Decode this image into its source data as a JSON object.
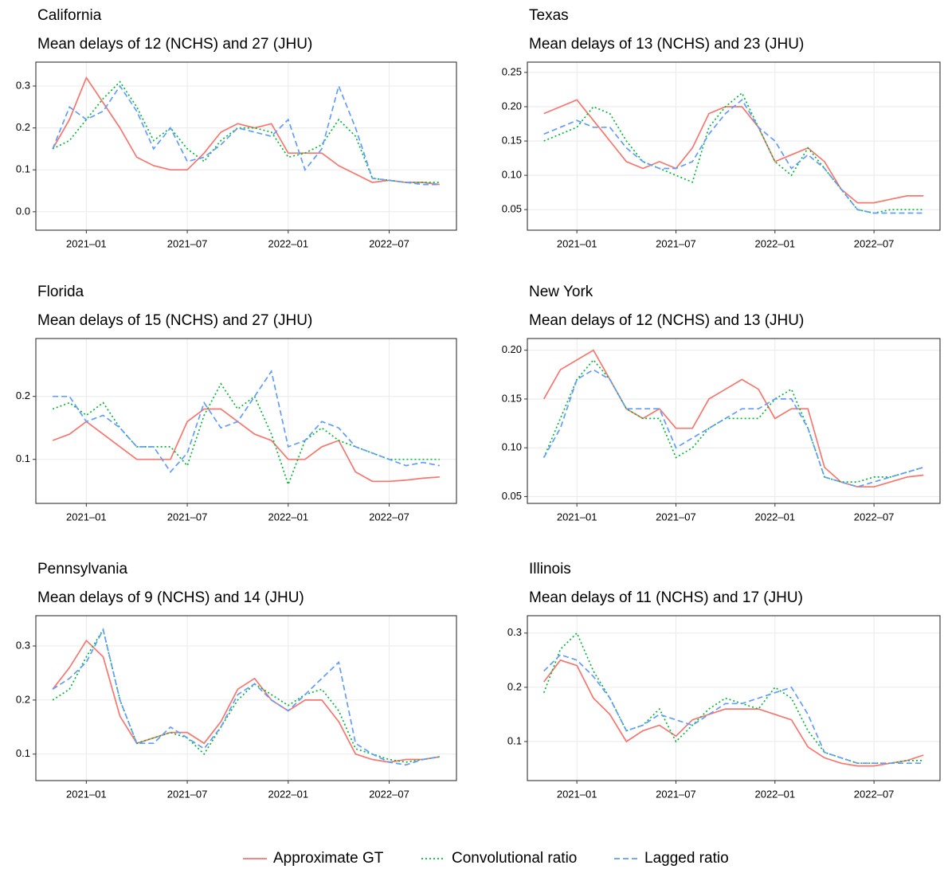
{
  "chart_data": [
    {
      "type": "line",
      "title": "California",
      "subtitle": "Mean delays of 12 (NCHS) and 27 (JHU)",
      "x": [
        "2020-11",
        "2020-12",
        "2021-01",
        "2021-02",
        "2021-03",
        "2021-04",
        "2021-05",
        "2021-06",
        "2021-07",
        "2021-08",
        "2021-09",
        "2021-10",
        "2021-11",
        "2021-12",
        "2022-01",
        "2022-02",
        "2022-03",
        "2022-04",
        "2022-05",
        "2022-06",
        "2022-07",
        "2022-08",
        "2022-09",
        "2022-10"
      ],
      "xlim": [
        "2020-10",
        "2022-11"
      ],
      "xticks": [
        {
          "value": "2021-01",
          "label": "2021–01"
        },
        {
          "value": "2021-07",
          "label": "2021–07"
        },
        {
          "value": "2022-01",
          "label": "2022–01"
        },
        {
          "value": "2022-07",
          "label": "2022–07"
        }
      ],
      "ylim": [
        -0.044,
        0.357
      ],
      "yticks": [
        {
          "value": 0,
          "label": "0.0"
        },
        0.1,
        0.2,
        0.3
      ],
      "grid": true,
      "series": [
        {
          "values": [
            0.15,
            0.22,
            0.32,
            0.26,
            0.2,
            0.13,
            0.11,
            0.1,
            0.1,
            0.14,
            0.19,
            0.21,
            0.2,
            0.21,
            0.14,
            0.14,
            0.14,
            0.11,
            0.09,
            0.07,
            0.075,
            0.07,
            0.07,
            0.065
          ]
        },
        {
          "values": [
            0.15,
            0.17,
            0.22,
            0.27,
            0.31,
            0.25,
            0.17,
            0.2,
            0.15,
            0.12,
            0.17,
            0.2,
            0.2,
            0.19,
            0.13,
            0.14,
            0.16,
            0.22,
            0.18,
            0.08,
            0.075,
            0.07,
            0.07,
            0.07
          ]
        },
        {
          "values": [
            0.15,
            0.25,
            0.22,
            0.24,
            0.3,
            0.24,
            0.15,
            0.2,
            0.12,
            0.13,
            0.16,
            0.2,
            0.19,
            0.18,
            0.22,
            0.1,
            0.15,
            0.3,
            0.2,
            0.08,
            0.075,
            0.07,
            0.065,
            0.065
          ]
        }
      ]
    },
    {
      "type": "line",
      "title": "Texas",
      "subtitle": "Mean delays of 13 (NCHS) and 23 (JHU)",
      "x": [
        "2020-11",
        "2020-12",
        "2021-01",
        "2021-02",
        "2021-03",
        "2021-04",
        "2021-05",
        "2021-06",
        "2021-07",
        "2021-08",
        "2021-09",
        "2021-10",
        "2021-11",
        "2021-12",
        "2022-01",
        "2022-02",
        "2022-03",
        "2022-04",
        "2022-05",
        "2022-06",
        "2022-07",
        "2022-08",
        "2022-09",
        "2022-10"
      ],
      "xlim": [
        "2020-10",
        "2022-11"
      ],
      "xticks": [
        {
          "value": "2021-01",
          "label": "2021–01"
        },
        {
          "value": "2021-07",
          "label": "2021–07"
        },
        {
          "value": "2022-01",
          "label": "2022–01"
        },
        {
          "value": "2022-07",
          "label": "2022–07"
        }
      ],
      "ylim": [
        0.02,
        0.265
      ],
      "yticks": [
        0.05,
        {
          "value": 0.1,
          "label": "0.10"
        },
        0.15,
        {
          "value": 0.2,
          "label": "0.20"
        },
        0.25
      ],
      "grid": true,
      "series": [
        {
          "values": [
            0.19,
            0.2,
            0.21,
            0.18,
            0.15,
            0.12,
            0.11,
            0.12,
            0.11,
            0.14,
            0.19,
            0.2,
            0.2,
            0.17,
            0.12,
            0.13,
            0.14,
            0.12,
            0.08,
            0.06,
            0.06,
            0.065,
            0.07,
            0.07
          ]
        },
        {
          "values": [
            0.15,
            0.16,
            0.17,
            0.2,
            0.19,
            0.15,
            0.12,
            0.11,
            0.1,
            0.09,
            0.17,
            0.2,
            0.22,
            0.17,
            0.12,
            0.1,
            0.14,
            0.11,
            0.08,
            0.05,
            0.045,
            0.05,
            0.05,
            0.05
          ]
        },
        {
          "values": [
            0.16,
            0.17,
            0.18,
            0.17,
            0.17,
            0.14,
            0.12,
            0.11,
            0.11,
            0.12,
            0.16,
            0.19,
            0.21,
            0.17,
            0.15,
            0.11,
            0.13,
            0.11,
            0.08,
            0.05,
            0.045,
            0.045,
            0.045,
            0.045
          ]
        }
      ]
    },
    {
      "type": "line",
      "title": "Florida",
      "subtitle": "Mean delays of 15 (NCHS) and 27 (JHU)",
      "x": [
        "2020-11",
        "2020-12",
        "2021-01",
        "2021-02",
        "2021-03",
        "2021-04",
        "2021-05",
        "2021-06",
        "2021-07",
        "2021-08",
        "2021-09",
        "2021-10",
        "2021-11",
        "2021-12",
        "2022-01",
        "2022-02",
        "2022-03",
        "2022-04",
        "2022-05",
        "2022-06",
        "2022-07",
        "2022-08",
        "2022-09",
        "2022-10"
      ],
      "xlim": [
        "2020-10",
        "2022-11"
      ],
      "xticks": [
        {
          "value": "2021-01",
          "label": "2021–01"
        },
        {
          "value": "2021-07",
          "label": "2021–07"
        },
        {
          "value": "2022-01",
          "label": "2022–01"
        },
        {
          "value": "2022-07",
          "label": "2022–07"
        }
      ],
      "ylim": [
        0.03,
        0.292
      ],
      "yticks": [
        0.1,
        0.2
      ],
      "grid": true,
      "series": [
        {
          "values": [
            0.13,
            0.14,
            0.16,
            0.14,
            0.12,
            0.1,
            0.1,
            0.1,
            0.16,
            0.18,
            0.18,
            0.16,
            0.14,
            0.13,
            0.1,
            0.1,
            0.12,
            0.13,
            0.08,
            0.065,
            0.065,
            0.067,
            0.07,
            0.072
          ]
        },
        {
          "values": [
            0.18,
            0.19,
            0.17,
            0.19,
            0.15,
            0.12,
            0.12,
            0.12,
            0.09,
            0.17,
            0.22,
            0.18,
            0.2,
            0.14,
            0.06,
            0.13,
            0.15,
            0.13,
            0.12,
            0.11,
            0.1,
            0.1,
            0.1,
            0.1
          ]
        },
        {
          "values": [
            0.2,
            0.2,
            0.16,
            0.17,
            0.15,
            0.12,
            0.12,
            0.08,
            0.11,
            0.19,
            0.15,
            0.16,
            0.2,
            0.24,
            0.12,
            0.13,
            0.16,
            0.15,
            0.12,
            0.11,
            0.1,
            0.09,
            0.095,
            0.09
          ]
        }
      ]
    },
    {
      "type": "line",
      "title": "New York",
      "subtitle": "Mean delays of 12 (NCHS) and 13 (JHU)",
      "x": [
        "2020-11",
        "2020-12",
        "2021-01",
        "2021-02",
        "2021-03",
        "2021-04",
        "2021-05",
        "2021-06",
        "2021-07",
        "2021-08",
        "2021-09",
        "2021-10",
        "2021-11",
        "2021-12",
        "2022-01",
        "2022-02",
        "2022-03",
        "2022-04",
        "2022-05",
        "2022-06",
        "2022-07",
        "2022-08",
        "2022-09",
        "2022-10"
      ],
      "xlim": [
        "2020-10",
        "2022-11"
      ],
      "xticks": [
        {
          "value": "2021-01",
          "label": "2021–01"
        },
        {
          "value": "2021-07",
          "label": "2021–07"
        },
        {
          "value": "2022-01",
          "label": "2022–01"
        },
        {
          "value": "2022-07",
          "label": "2022–07"
        }
      ],
      "ylim": [
        0.043,
        0.212
      ],
      "yticks": [
        0.05,
        {
          "value": 0.1,
          "label": "0.10"
        },
        0.15,
        {
          "value": 0.2,
          "label": "0.20"
        }
      ],
      "grid": true,
      "series": [
        {
          "values": [
            0.15,
            0.18,
            0.19,
            0.2,
            0.17,
            0.14,
            0.13,
            0.14,
            0.12,
            0.12,
            0.15,
            0.16,
            0.17,
            0.16,
            0.13,
            0.14,
            0.14,
            0.08,
            0.065,
            0.06,
            0.06,
            0.065,
            0.07,
            0.072
          ]
        },
        {
          "values": [
            0.09,
            0.13,
            0.17,
            0.19,
            0.17,
            0.14,
            0.13,
            0.13,
            0.09,
            0.1,
            0.12,
            0.13,
            0.13,
            0.13,
            0.15,
            0.16,
            0.12,
            0.07,
            0.065,
            0.065,
            0.07,
            0.07,
            0.075,
            0.08
          ]
        },
        {
          "values": [
            0.09,
            0.12,
            0.17,
            0.18,
            0.17,
            0.14,
            0.14,
            0.14,
            0.1,
            0.11,
            0.12,
            0.13,
            0.14,
            0.14,
            0.15,
            0.15,
            0.12,
            0.07,
            0.065,
            0.06,
            0.065,
            0.07,
            0.075,
            0.08
          ]
        }
      ]
    },
    {
      "type": "line",
      "title": "Pennsylvania",
      "subtitle": "Mean delays of 9 (NCHS) and 14 (JHU)",
      "x": [
        "2020-11",
        "2020-12",
        "2021-01",
        "2021-02",
        "2021-03",
        "2021-04",
        "2021-05",
        "2021-06",
        "2021-07",
        "2021-08",
        "2021-09",
        "2021-10",
        "2021-11",
        "2021-12",
        "2022-01",
        "2022-02",
        "2022-03",
        "2022-04",
        "2022-05",
        "2022-06",
        "2022-07",
        "2022-08",
        "2022-09",
        "2022-10"
      ],
      "xlim": [
        "2020-10",
        "2022-11"
      ],
      "xticks": [
        {
          "value": "2021-01",
          "label": "2021–01"
        },
        {
          "value": "2021-07",
          "label": "2021–07"
        },
        {
          "value": "2022-01",
          "label": "2022–01"
        },
        {
          "value": "2022-07",
          "label": "2022–07"
        }
      ],
      "ylim": [
        0.051,
        0.356
      ],
      "yticks": [
        0.1,
        0.2,
        0.3
      ],
      "grid": true,
      "series": [
        {
          "values": [
            0.22,
            0.26,
            0.31,
            0.28,
            0.17,
            0.12,
            0.13,
            0.14,
            0.14,
            0.12,
            0.16,
            0.22,
            0.24,
            0.2,
            0.18,
            0.2,
            0.2,
            0.16,
            0.1,
            0.09,
            0.085,
            0.09,
            0.09,
            0.095
          ]
        },
        {
          "values": [
            0.2,
            0.22,
            0.28,
            0.33,
            0.2,
            0.12,
            0.13,
            0.14,
            0.13,
            0.1,
            0.15,
            0.2,
            0.23,
            0.21,
            0.19,
            0.21,
            0.22,
            0.18,
            0.11,
            0.1,
            0.09,
            0.085,
            0.09,
            0.095
          ]
        },
        {
          "values": [
            0.22,
            0.24,
            0.27,
            0.33,
            0.2,
            0.12,
            0.12,
            0.15,
            0.13,
            0.11,
            0.15,
            0.21,
            0.23,
            0.2,
            0.18,
            0.21,
            0.24,
            0.27,
            0.12,
            0.1,
            0.085,
            0.08,
            0.09,
            0.095
          ]
        }
      ]
    },
    {
      "type": "line",
      "title": "Illinois",
      "subtitle": "Mean delays of 11 (NCHS) and 17 (JHU)",
      "x": [
        "2020-11",
        "2020-12",
        "2021-01",
        "2021-02",
        "2021-03",
        "2021-04",
        "2021-05",
        "2021-06",
        "2021-07",
        "2021-08",
        "2021-09",
        "2021-10",
        "2021-11",
        "2021-12",
        "2022-01",
        "2022-02",
        "2022-03",
        "2022-04",
        "2022-05",
        "2022-06",
        "2022-07",
        "2022-08",
        "2022-09",
        "2022-10"
      ],
      "xlim": [
        "2020-10",
        "2022-11"
      ],
      "xticks": [
        {
          "value": "2021-01",
          "label": "2021–01"
        },
        {
          "value": "2021-07",
          "label": "2021–07"
        },
        {
          "value": "2022-01",
          "label": "2022–01"
        },
        {
          "value": "2022-07",
          "label": "2022–07"
        }
      ],
      "ylim": [
        0.028,
        0.332
      ],
      "yticks": [
        0.1,
        0.2,
        0.3
      ],
      "grid": true,
      "series": [
        {
          "values": [
            0.21,
            0.25,
            0.24,
            0.18,
            0.15,
            0.1,
            0.12,
            0.13,
            0.11,
            0.14,
            0.15,
            0.16,
            0.16,
            0.16,
            0.15,
            0.14,
            0.09,
            0.07,
            0.06,
            0.055,
            0.055,
            0.06,
            0.065,
            0.075
          ]
        },
        {
          "values": [
            0.19,
            0.27,
            0.3,
            0.23,
            0.18,
            0.12,
            0.13,
            0.16,
            0.1,
            0.13,
            0.16,
            0.18,
            0.17,
            0.16,
            0.2,
            0.18,
            0.12,
            0.08,
            0.07,
            0.06,
            0.06,
            0.06,
            0.065,
            0.065
          ]
        },
        {
          "values": [
            0.23,
            0.26,
            0.25,
            0.22,
            0.18,
            0.12,
            0.13,
            0.15,
            0.14,
            0.13,
            0.15,
            0.17,
            0.17,
            0.18,
            0.19,
            0.2,
            0.15,
            0.08,
            0.07,
            0.06,
            0.06,
            0.06,
            0.06,
            0.06
          ]
        }
      ]
    }
  ],
  "legend": {
    "position": "bottom",
    "items": [
      {
        "name": "Approximate GT",
        "color": "#F8766D",
        "dash": "none"
      },
      {
        "name": "Convolutional ratio",
        "color": "#00BA38",
        "dash": "2,3"
      },
      {
        "name": "Lagged ratio",
        "color": "#619CFF",
        "dash": "7,4"
      }
    ]
  }
}
